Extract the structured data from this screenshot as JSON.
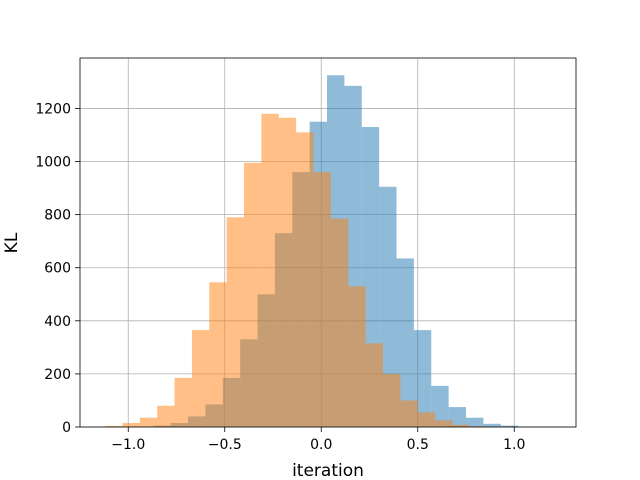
{
  "chart_data": {
    "type": "bar",
    "subtype": "overlapping-histogram",
    "title": "",
    "xlabel": "iteration",
    "ylabel": "KL",
    "xlim": [
      -1.25,
      1.32
    ],
    "ylim": [
      0,
      1390
    ],
    "grid": true,
    "legend": "none",
    "x_ticks": [
      -1.0,
      -0.5,
      0.0,
      0.5,
      1.0
    ],
    "x_tick_labels": [
      "−1.0",
      "−0.5",
      "0.0",
      "0.5",
      "1.0"
    ],
    "y_ticks": [
      0,
      200,
      400,
      600,
      800,
      1000,
      1200
    ],
    "y_tick_labels": [
      "0",
      "200",
      "400",
      "600",
      "800",
      "1000",
      "1200"
    ],
    "series": [
      {
        "color": "#1f77b4",
        "alpha": 0.5,
        "bins": [
          {
            "x0": -0.87,
            "x1": -0.78,
            "value": 5
          },
          {
            "x0": -0.78,
            "x1": -0.69,
            "value": 15
          },
          {
            "x0": -0.69,
            "x1": -0.6,
            "value": 40
          },
          {
            "x0": -0.6,
            "x1": -0.51,
            "value": 85
          },
          {
            "x0": -0.51,
            "x1": -0.42,
            "value": 185
          },
          {
            "x0": -0.42,
            "x1": -0.33,
            "value": 330
          },
          {
            "x0": -0.33,
            "x1": -0.24,
            "value": 500
          },
          {
            "x0": -0.24,
            "x1": -0.15,
            "value": 730
          },
          {
            "x0": -0.15,
            "x1": -0.06,
            "value": 960
          },
          {
            "x0": -0.06,
            "x1": 0.03,
            "value": 1150
          },
          {
            "x0": 0.03,
            "x1": 0.12,
            "value": 1325
          },
          {
            "x0": 0.12,
            "x1": 0.21,
            "value": 1285
          },
          {
            "x0": 0.21,
            "x1": 0.3,
            "value": 1130
          },
          {
            "x0": 0.3,
            "x1": 0.39,
            "value": 905
          },
          {
            "x0": 0.39,
            "x1": 0.48,
            "value": 635
          },
          {
            "x0": 0.48,
            "x1": 0.57,
            "value": 365
          },
          {
            "x0": 0.57,
            "x1": 0.66,
            "value": 155
          },
          {
            "x0": 0.66,
            "x1": 0.75,
            "value": 75
          },
          {
            "x0": 0.75,
            "x1": 0.84,
            "value": 35
          },
          {
            "x0": 0.84,
            "x1": 0.93,
            "value": 12
          },
          {
            "x0": 0.93,
            "x1": 1.02,
            "value": 5
          }
        ]
      },
      {
        "color": "#ff7f0e",
        "alpha": 0.5,
        "bins": [
          {
            "x0": -1.12,
            "x1": -1.03,
            "value": 4
          },
          {
            "x0": -1.03,
            "x1": -0.94,
            "value": 15
          },
          {
            "x0": -0.94,
            "x1": -0.85,
            "value": 35
          },
          {
            "x0": -0.85,
            "x1": -0.76,
            "value": 80
          },
          {
            "x0": -0.76,
            "x1": -0.67,
            "value": 185
          },
          {
            "x0": -0.67,
            "x1": -0.58,
            "value": 365
          },
          {
            "x0": -0.58,
            "x1": -0.49,
            "value": 545
          },
          {
            "x0": -0.49,
            "x1": -0.4,
            "value": 790
          },
          {
            "x0": -0.4,
            "x1": -0.31,
            "value": 995
          },
          {
            "x0": -0.31,
            "x1": -0.22,
            "value": 1180
          },
          {
            "x0": -0.22,
            "x1": -0.13,
            "value": 1165
          },
          {
            "x0": -0.13,
            "x1": -0.04,
            "value": 1110
          },
          {
            "x0": -0.04,
            "x1": 0.05,
            "value": 960
          },
          {
            "x0": 0.05,
            "x1": 0.14,
            "value": 785
          },
          {
            "x0": 0.14,
            "x1": 0.23,
            "value": 530
          },
          {
            "x0": 0.23,
            "x1": 0.32,
            "value": 315
          },
          {
            "x0": 0.32,
            "x1": 0.41,
            "value": 200
          },
          {
            "x0": 0.41,
            "x1": 0.5,
            "value": 100
          },
          {
            "x0": 0.5,
            "x1": 0.59,
            "value": 55
          },
          {
            "x0": 0.59,
            "x1": 0.68,
            "value": 25
          },
          {
            "x0": 0.68,
            "x1": 0.77,
            "value": 8
          },
          {
            "x0": 0.77,
            "x1": 0.86,
            "value": 3
          }
        ]
      }
    ]
  }
}
